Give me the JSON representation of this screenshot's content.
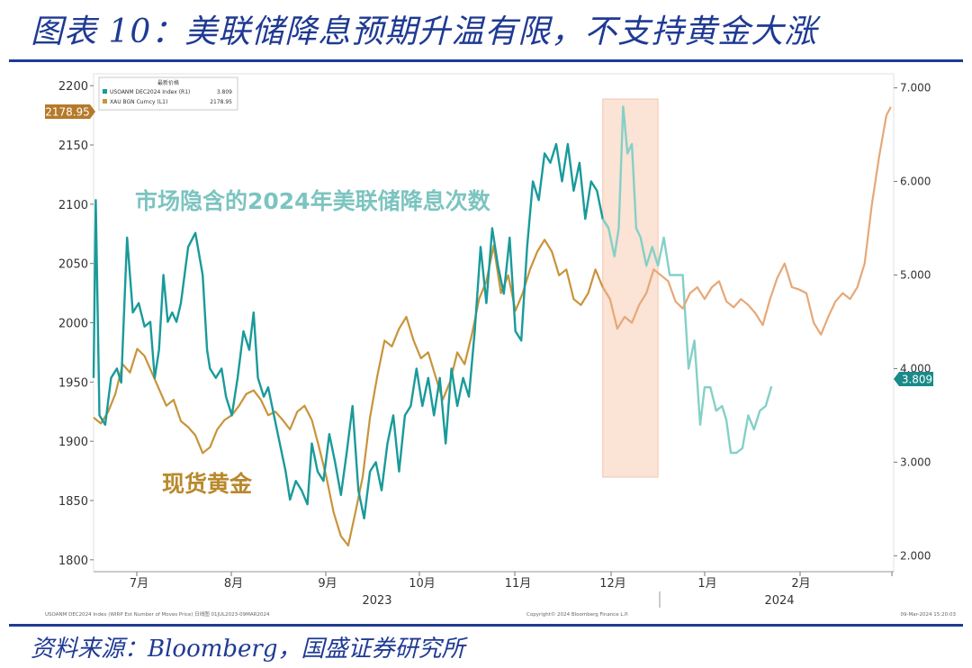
{
  "header": {
    "title": "图表 10：美联储降息预期升温有限，不支持黄金大涨"
  },
  "footer": {
    "source": "资料来源：Bloomberg，国盛证券研究所"
  },
  "chart_data": {
    "type": "line",
    "legend": {
      "title": "最新价格",
      "placement": "top-left",
      "entries": [
        {
          "name": "USOANM DEC2024 Index (R1)",
          "value": "3.809",
          "color": "#1a9a9a"
        },
        {
          "name": "XAU BGN Curncy (L1)",
          "value": "2178.95",
          "color": "#c8943a"
        }
      ]
    },
    "annotations": {
      "teal_label": "市场隐含的2024年美联储降息次数",
      "gold_label": "现货黄金",
      "last_gold": "2178.95",
      "last_rate": "3.809",
      "footer_left": "USOANM DEC2024 Index (WIRP Est Number of Moves Price) 日线图 01JUL2023-09MAR2024",
      "footer_mid": "Copyright© 2024 Bloomberg Finance L.P.",
      "footer_right": "09-Mar-2024 15:20:03"
    },
    "y_left": {
      "range": [
        1790,
        2210
      ],
      "ticks": [
        "2200",
        "2150",
        "2100",
        "2050",
        "2000",
        "1950",
        "1900",
        "1850",
        "1800"
      ]
    },
    "y_right": {
      "range": [
        1.83,
        7.15
      ],
      "ticks": [
        "7.000",
        "6.000",
        "5.000",
        "4.000",
        "3.000",
        "2.000"
      ]
    },
    "x_axis": {
      "months": [
        "7月",
        "8月",
        "9月",
        "10月",
        "11月",
        "12月",
        "1月",
        "2月"
      ],
      "years": [
        "2023",
        "2024"
      ]
    },
    "highlight": {
      "from_week": 35,
      "to_week": 38.8,
      "color": "#fbe3d5"
    },
    "gold": {
      "name": "XAU BGN Curncy (L1)",
      "color": "#c8943a",
      "points": [
        [
          0,
          1920
        ],
        [
          0.5,
          1915
        ],
        [
          1,
          1925
        ],
        [
          1.5,
          1940
        ],
        [
          2,
          1965
        ],
        [
          2.5,
          1958
        ],
        [
          3,
          1978
        ],
        [
          3.5,
          1972
        ],
        [
          4,
          1958
        ],
        [
          4.5,
          1944
        ],
        [
          5,
          1930
        ],
        [
          5.5,
          1935
        ],
        [
          6,
          1917
        ],
        [
          6.5,
          1912
        ],
        [
          7,
          1905
        ],
        [
          7.5,
          1890
        ],
        [
          8,
          1895
        ],
        [
          8.5,
          1910
        ],
        [
          9,
          1918
        ],
        [
          9.5,
          1922
        ],
        [
          10,
          1930
        ],
        [
          10.5,
          1940
        ],
        [
          11,
          1943
        ],
        [
          11.5,
          1935
        ],
        [
          12,
          1922
        ],
        [
          12.5,
          1925
        ],
        [
          13,
          1918
        ],
        [
          13.5,
          1910
        ],
        [
          14,
          1925
        ],
        [
          14.5,
          1930
        ],
        [
          15,
          1918
        ],
        [
          15.5,
          1895
        ],
        [
          16,
          1870
        ],
        [
          16.5,
          1840
        ],
        [
          17,
          1820
        ],
        [
          17.5,
          1812
        ],
        [
          18,
          1840
        ],
        [
          18.5,
          1870
        ],
        [
          19,
          1920
        ],
        [
          19.5,
          1955
        ],
        [
          20,
          1985
        ],
        [
          20.5,
          1980
        ],
        [
          21,
          1995
        ],
        [
          21.5,
          2005
        ],
        [
          22,
          1985
        ],
        [
          22.5,
          1970
        ],
        [
          23,
          1975
        ],
        [
          23.5,
          1955
        ],
        [
          24,
          1935
        ],
        [
          24.5,
          1950
        ],
        [
          25,
          1975
        ],
        [
          25.5,
          1965
        ],
        [
          26,
          1990
        ],
        [
          26.5,
          2020
        ],
        [
          27,
          2035
        ],
        [
          27.5,
          2065
        ],
        [
          28,
          2025
        ],
        [
          28.5,
          2040
        ],
        [
          29,
          2010
        ],
        [
          29.5,
          2025
        ],
        [
          30,
          2045
        ],
        [
          30.5,
          2060
        ],
        [
          31,
          2070
        ],
        [
          31.5,
          2060
        ],
        [
          32,
          2040
        ],
        [
          32.5,
          2045
        ],
        [
          33,
          2020
        ],
        [
          33.5,
          2015
        ],
        [
          34,
          2025
        ],
        [
          34.5,
          2045
        ],
        [
          35,
          2030
        ],
        [
          35.5,
          2020
        ],
        [
          36,
          1995
        ],
        [
          36.5,
          2005
        ],
        [
          37,
          2000
        ],
        [
          37.5,
          2015
        ],
        [
          38,
          2025
        ],
        [
          38.5,
          2045
        ],
        [
          39,
          2040
        ],
        [
          39.5,
          2035
        ],
        [
          40,
          2018
        ],
        [
          40.5,
          2012
        ],
        [
          41,
          2025
        ],
        [
          41.5,
          2030
        ],
        [
          42,
          2020
        ],
        [
          42.5,
          2030
        ],
        [
          43,
          2035
        ],
        [
          43.5,
          2018
        ],
        [
          44,
          2013
        ],
        [
          44.5,
          2020
        ],
        [
          45,
          2015
        ],
        [
          45.5,
          2008
        ],
        [
          46,
          1998
        ],
        [
          46.5,
          2020
        ],
        [
          47,
          2038
        ],
        [
          47.5,
          2050
        ],
        [
          48,
          2030
        ],
        [
          48.5,
          2028
        ],
        [
          49,
          2025
        ],
        [
          49.5,
          2000
        ],
        [
          50,
          1990
        ],
        [
          50.5,
          2005
        ],
        [
          51,
          2018
        ],
        [
          51.5,
          2025
        ],
        [
          52,
          2020
        ],
        [
          52.5,
          2030
        ],
        [
          53,
          2050
        ],
        [
          53.5,
          2100
        ],
        [
          54,
          2140
        ],
        [
          54.5,
          2175
        ],
        [
          54.8,
          2182
        ]
      ]
    },
    "rate": {
      "name": "USOANM DEC2024 Index (R1)",
      "color": "#1a9a9a",
      "points": [
        [
          0,
          3.9
        ],
        [
          0.15,
          5.8
        ],
        [
          0.4,
          3.5
        ],
        [
          0.8,
          3.4
        ],
        [
          1.2,
          3.9
        ],
        [
          1.6,
          4.0
        ],
        [
          1.9,
          3.85
        ],
        [
          2.3,
          5.4
        ],
        [
          2.7,
          4.6
        ],
        [
          3.1,
          4.7
        ],
        [
          3.5,
          4.45
        ],
        [
          3.9,
          4.5
        ],
        [
          4.2,
          3.9
        ],
        [
          4.5,
          4.2
        ],
        [
          4.8,
          5.0
        ],
        [
          5.1,
          4.5
        ],
        [
          5.4,
          4.6
        ],
        [
          5.7,
          4.5
        ],
        [
          6.0,
          4.7
        ],
        [
          6.5,
          5.3
        ],
        [
          7.0,
          5.45
        ],
        [
          7.5,
          5.0
        ],
        [
          7.8,
          4.2
        ],
        [
          8.0,
          4.0
        ],
        [
          8.4,
          3.9
        ],
        [
          8.8,
          4.0
        ],
        [
          9.1,
          3.7
        ],
        [
          9.5,
          3.5
        ],
        [
          9.9,
          3.9
        ],
        [
          10.3,
          4.4
        ],
        [
          10.7,
          4.2
        ],
        [
          11.0,
          4.6
        ],
        [
          11.3,
          3.9
        ],
        [
          11.7,
          3.7
        ],
        [
          12.0,
          3.8
        ],
        [
          12.4,
          3.5
        ],
        [
          12.8,
          3.2
        ],
        [
          13.2,
          2.9
        ],
        [
          13.5,
          2.6
        ],
        [
          13.9,
          2.8
        ],
        [
          14.3,
          2.7
        ],
        [
          14.7,
          2.55
        ],
        [
          15.0,
          3.2
        ],
        [
          15.4,
          2.9
        ],
        [
          15.8,
          2.8
        ],
        [
          16.2,
          3.3
        ],
        [
          16.6,
          3.0
        ],
        [
          17.0,
          2.65
        ],
        [
          17.4,
          3.1
        ],
        [
          17.8,
          3.6
        ],
        [
          18.2,
          2.7
        ],
        [
          18.6,
          2.4
        ],
        [
          19.0,
          2.9
        ],
        [
          19.4,
          3.0
        ],
        [
          19.8,
          2.7
        ],
        [
          20.2,
          3.2
        ],
        [
          20.6,
          3.5
        ],
        [
          21.0,
          2.9
        ],
        [
          21.4,
          3.5
        ],
        [
          21.8,
          3.6
        ],
        [
          22.2,
          4.0
        ],
        [
          22.6,
          3.6
        ],
        [
          23.0,
          3.9
        ],
        [
          23.4,
          3.5
        ],
        [
          23.8,
          3.9
        ],
        [
          24.2,
          3.2
        ],
        [
          24.6,
          4.0
        ],
        [
          25.0,
          3.6
        ],
        [
          25.4,
          3.9
        ],
        [
          25.8,
          3.7
        ],
        [
          26.2,
          4.4
        ],
        [
          26.6,
          5.3
        ],
        [
          27.0,
          4.7
        ],
        [
          27.4,
          5.5
        ],
        [
          27.8,
          5.1
        ],
        [
          28.2,
          4.8
        ],
        [
          28.6,
          5.4
        ],
        [
          29.0,
          4.4
        ],
        [
          29.4,
          4.3
        ],
        [
          29.8,
          5.3
        ],
        [
          30.2,
          6.0
        ],
        [
          30.6,
          5.8
        ],
        [
          31.0,
          6.3
        ],
        [
          31.4,
          6.2
        ],
        [
          31.8,
          6.4
        ],
        [
          32.2,
          6.0
        ],
        [
          32.6,
          6.4
        ],
        [
          33.0,
          5.9
        ],
        [
          33.4,
          6.2
        ],
        [
          33.8,
          5.6
        ],
        [
          34.2,
          6.0
        ],
        [
          34.6,
          5.9
        ],
        [
          35.0,
          5.6
        ],
        [
          35.4,
          5.5
        ],
        [
          35.8,
          5.2
        ],
        [
          36.1,
          5.5
        ],
        [
          36.4,
          6.8
        ],
        [
          36.7,
          6.3
        ],
        [
          37.0,
          6.4
        ],
        [
          37.3,
          5.5
        ],
        [
          37.6,
          5.4
        ],
        [
          38.0,
          5.1
        ],
        [
          38.4,
          5.3
        ],
        [
          38.8,
          5.1
        ],
        [
          39.2,
          5.4
        ],
        [
          39.6,
          5.0
        ],
        [
          40.0,
          5.0
        ],
        [
          40.5,
          5.0
        ],
        [
          40.9,
          4.0
        ],
        [
          41.3,
          4.3
        ],
        [
          41.7,
          3.4
        ],
        [
          42.0,
          3.8
        ],
        [
          42.4,
          3.8
        ],
        [
          42.8,
          3.55
        ],
        [
          43.2,
          3.6
        ],
        [
          43.5,
          3.45
        ],
        [
          43.8,
          3.1
        ],
        [
          44.2,
          3.1
        ],
        [
          44.6,
          3.15
        ],
        [
          45.0,
          3.5
        ],
        [
          45.4,
          3.35
        ],
        [
          45.8,
          3.55
        ],
        [
          46.2,
          3.6
        ],
        [
          46.6,
          3.81
        ]
      ]
    }
  }
}
